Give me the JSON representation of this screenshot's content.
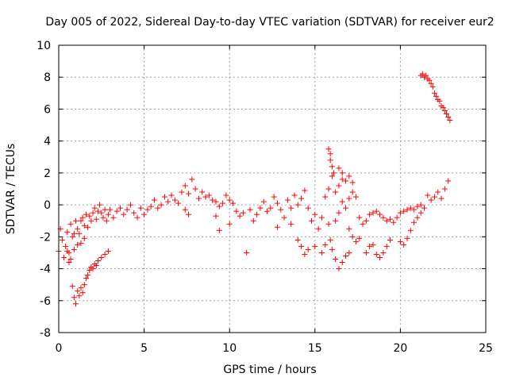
{
  "chart_data": {
    "type": "scatter",
    "title": "Day 005 of 2022, Sidereal Day-to-day VTEC variation (SDTVAR) for receiver eur2",
    "xlabel": "GPS time / hours",
    "ylabel": "SDTVAR / TECUs",
    "xlim": [
      0,
      25
    ],
    "ylim": [
      -8,
      10
    ],
    "xticks": [
      0,
      5,
      10,
      15,
      20,
      25
    ],
    "yticks": [
      -8,
      -6,
      -4,
      -2,
      0,
      2,
      4,
      6,
      8,
      10
    ],
    "grid": true,
    "marker": "+",
    "color": "#ff0000",
    "series": [
      {
        "name": "SDTVAR",
        "points": [
          [
            0.0,
            -2.9
          ],
          [
            0.1,
            -1.5
          ],
          [
            0.2,
            -2.2
          ],
          [
            0.3,
            -3.3
          ],
          [
            0.4,
            -2.6
          ],
          [
            0.5,
            -1.7
          ],
          [
            0.6,
            -3.0
          ],
          [
            0.7,
            -1.2
          ],
          [
            0.8,
            -2.0
          ],
          [
            0.9,
            -1.8
          ],
          [
            1.0,
            -1.0
          ],
          [
            1.1,
            -1.5
          ],
          [
            1.2,
            -1.8
          ],
          [
            1.3,
            -1.0
          ],
          [
            1.4,
            -0.8
          ],
          [
            1.5,
            -1.3
          ],
          [
            1.6,
            -0.6
          ],
          [
            1.7,
            -1.4
          ],
          [
            1.8,
            -0.7
          ],
          [
            1.9,
            -1.0
          ],
          [
            2.0,
            -0.5
          ],
          [
            2.1,
            -0.2
          ],
          [
            2.2,
            -0.9
          ],
          [
            2.3,
            -0.4
          ],
          [
            2.4,
            0.0
          ],
          [
            2.5,
            -0.5
          ],
          [
            2.6,
            -0.8
          ],
          [
            2.7,
            -0.3
          ],
          [
            2.8,
            -1.0
          ],
          [
            2.9,
            -0.6
          ],
          [
            3.0,
            -0.3
          ],
          [
            3.2,
            -0.8
          ],
          [
            3.4,
            -0.4
          ],
          [
            3.6,
            -0.2
          ],
          [
            3.8,
            -0.6
          ],
          [
            4.0,
            -0.3
          ],
          [
            4.2,
            0.0
          ],
          [
            4.4,
            -0.5
          ],
          [
            4.6,
            -0.8
          ],
          [
            4.8,
            -0.2
          ],
          [
            5.0,
            -0.6
          ],
          [
            5.2,
            -0.3
          ],
          [
            5.4,
            -0.1
          ],
          [
            5.6,
            0.3
          ],
          [
            5.8,
            -0.2
          ],
          [
            6.0,
            0.0
          ],
          [
            6.2,
            0.5
          ],
          [
            6.4,
            0.2
          ],
          [
            6.6,
            0.6
          ],
          [
            6.8,
            0.3
          ],
          [
            7.0,
            0.1
          ],
          [
            7.2,
            0.8
          ],
          [
            7.4,
            1.2
          ],
          [
            7.6,
            0.7
          ],
          [
            7.8,
            1.6
          ],
          [
            8.0,
            1.0
          ],
          [
            8.2,
            0.4
          ],
          [
            8.4,
            0.8
          ],
          [
            8.6,
            0.5
          ],
          [
            8.8,
            0.6
          ],
          [
            9.0,
            0.3
          ],
          [
            9.2,
            0.2
          ],
          [
            9.4,
            -0.1
          ],
          [
            9.6,
            0.1
          ],
          [
            9.8,
            0.6
          ],
          [
            10.0,
            0.3
          ],
          [
            10.2,
            0.1
          ],
          [
            10.4,
            -0.4
          ],
          [
            10.6,
            -0.7
          ],
          [
            10.8,
            -0.5
          ],
          [
            11.2,
            -0.3
          ],
          [
            11.4,
            -1.0
          ],
          [
            11.6,
            -0.6
          ],
          [
            11.8,
            -0.2
          ],
          [
            12.0,
            0.2
          ],
          [
            12.2,
            -0.4
          ],
          [
            12.4,
            -0.2
          ],
          [
            12.6,
            0.5
          ],
          [
            12.8,
            0.1
          ],
          [
            13.0,
            -0.3
          ],
          [
            13.2,
            -0.8
          ],
          [
            13.4,
            0.3
          ],
          [
            13.6,
            -0.2
          ],
          [
            13.8,
            0.6
          ],
          [
            14.0,
            0.0
          ],
          [
            14.2,
            0.4
          ],
          [
            14.4,
            0.9
          ],
          [
            14.6,
            -0.2
          ],
          [
            14.8,
            -1.0
          ],
          [
            15.0,
            -0.6
          ],
          [
            15.2,
            -1.5
          ],
          [
            15.4,
            -0.8
          ],
          [
            15.6,
            0.5
          ],
          [
            15.8,
            1.0
          ],
          [
            15.9,
            2.8
          ],
          [
            16.0,
            1.8
          ],
          [
            16.2,
            0.8
          ],
          [
            16.4,
            1.2
          ],
          [
            16.6,
            1.6
          ],
          [
            16.8,
            1.5
          ],
          [
            17.0,
            1.8
          ],
          [
            17.2,
            1.4
          ],
          [
            17.4,
            0.5
          ],
          [
            17.6,
            -0.8
          ],
          [
            17.8,
            -1.2
          ],
          [
            18.0,
            -1.0
          ],
          [
            18.2,
            -0.6
          ],
          [
            18.4,
            -0.5
          ],
          [
            18.6,
            -0.4
          ],
          [
            18.8,
            -0.6
          ],
          [
            19.0,
            -0.8
          ],
          [
            19.2,
            -1.0
          ],
          [
            19.4,
            -0.9
          ],
          [
            19.6,
            -1.1
          ],
          [
            19.8,
            -0.8
          ],
          [
            20.0,
            -0.5
          ],
          [
            20.2,
            -0.4
          ],
          [
            20.4,
            -0.3
          ],
          [
            20.6,
            -0.2
          ],
          [
            20.8,
            -0.3
          ],
          [
            21.0,
            -0.1
          ],
          [
            21.2,
            0.0
          ],
          [
            21.4,
            -0.2
          ],
          [
            21.6,
            0.6
          ],
          [
            21.8,
            0.3
          ],
          [
            22.0,
            0.5
          ],
          [
            22.2,
            0.8
          ],
          [
            22.4,
            0.4
          ],
          [
            22.6,
            1.0
          ],
          [
            22.8,
            1.5
          ],
          [
            0.8,
            -5.1
          ],
          [
            0.9,
            -5.8
          ],
          [
            1.0,
            -6.2
          ],
          [
            1.1,
            -5.4
          ],
          [
            1.2,
            -5.7
          ],
          [
            1.3,
            -5.2
          ],
          [
            1.4,
            -5.5
          ],
          [
            1.5,
            -5.0
          ],
          [
            1.6,
            -4.6
          ],
          [
            1.7,
            -4.4
          ],
          [
            1.8,
            -4.1
          ],
          [
            1.9,
            -3.9
          ],
          [
            2.0,
            -4.0
          ],
          [
            2.1,
            -3.7
          ],
          [
            2.2,
            -3.8
          ],
          [
            2.3,
            -3.5
          ],
          [
            2.5,
            -3.3
          ],
          [
            2.7,
            -3.1
          ],
          [
            2.9,
            -2.9
          ],
          [
            0.5,
            -2.9
          ],
          [
            0.6,
            -3.6
          ],
          [
            0.7,
            -3.4
          ],
          [
            0.9,
            -2.8
          ],
          [
            1.1,
            -2.5
          ],
          [
            1.3,
            -2.4
          ],
          [
            1.5,
            -2.1
          ],
          [
            11.0,
            -3.0
          ],
          [
            7.4,
            -0.3
          ],
          [
            7.6,
            -0.6
          ],
          [
            9.2,
            -0.7
          ],
          [
            9.4,
            -1.6
          ],
          [
            10.0,
            -1.2
          ],
          [
            12.8,
            -1.4
          ],
          [
            13.6,
            -1.2
          ],
          [
            14.0,
            -2.2
          ],
          [
            14.2,
            -2.6
          ],
          [
            14.4,
            -3.1
          ],
          [
            14.6,
            -2.8
          ],
          [
            15.0,
            -2.6
          ],
          [
            15.4,
            -3.0
          ],
          [
            15.6,
            -2.5
          ],
          [
            15.8,
            -1.2
          ],
          [
            15.9,
            -2.2
          ],
          [
            16.0,
            -2.8
          ],
          [
            16.2,
            -3.4
          ],
          [
            16.4,
            -4.0
          ],
          [
            16.6,
            -3.6
          ],
          [
            16.8,
            -3.2
          ],
          [
            17.0,
            -3.0
          ],
          [
            16.2,
            -1.0
          ],
          [
            16.4,
            -0.5
          ],
          [
            16.6,
            0.2
          ],
          [
            16.8,
            -0.2
          ],
          [
            17.0,
            -1.5
          ],
          [
            17.2,
            -2.0
          ],
          [
            17.4,
            -2.3
          ],
          [
            17.6,
            -2.1
          ],
          [
            15.8,
            3.5
          ],
          [
            15.9,
            3.2
          ],
          [
            16.0,
            2.4
          ],
          [
            16.1,
            2.0
          ],
          [
            16.4,
            2.3
          ],
          [
            16.6,
            2.0
          ],
          [
            17.0,
            0.4
          ],
          [
            17.2,
            0.8
          ],
          [
            18.0,
            -3.0
          ],
          [
            18.2,
            -2.6
          ],
          [
            18.4,
            -2.5
          ],
          [
            18.6,
            -3.1
          ],
          [
            18.8,
            -3.3
          ],
          [
            19.0,
            -3.0
          ],
          [
            19.2,
            -2.6
          ],
          [
            19.4,
            -2.2
          ],
          [
            20.0,
            -2.3
          ],
          [
            20.2,
            -2.5
          ],
          [
            20.4,
            -2.1
          ],
          [
            20.6,
            -1.6
          ],
          [
            20.8,
            -1.1
          ],
          [
            21.0,
            -0.8
          ],
          [
            21.2,
            -0.5
          ],
          [
            21.2,
            8.1
          ],
          [
            21.3,
            8.2
          ],
          [
            21.4,
            8.0
          ],
          [
            21.5,
            8.1
          ],
          [
            21.6,
            7.9
          ],
          [
            21.7,
            7.8
          ],
          [
            21.8,
            7.6
          ],
          [
            21.9,
            7.4
          ],
          [
            22.0,
            7.0
          ],
          [
            22.1,
            6.8
          ],
          [
            22.2,
            6.6
          ],
          [
            22.3,
            6.5
          ],
          [
            22.4,
            6.2
          ],
          [
            22.5,
            6.1
          ],
          [
            22.6,
            5.9
          ],
          [
            22.7,
            5.7
          ],
          [
            22.8,
            5.5
          ],
          [
            22.9,
            5.3
          ]
        ]
      }
    ]
  }
}
